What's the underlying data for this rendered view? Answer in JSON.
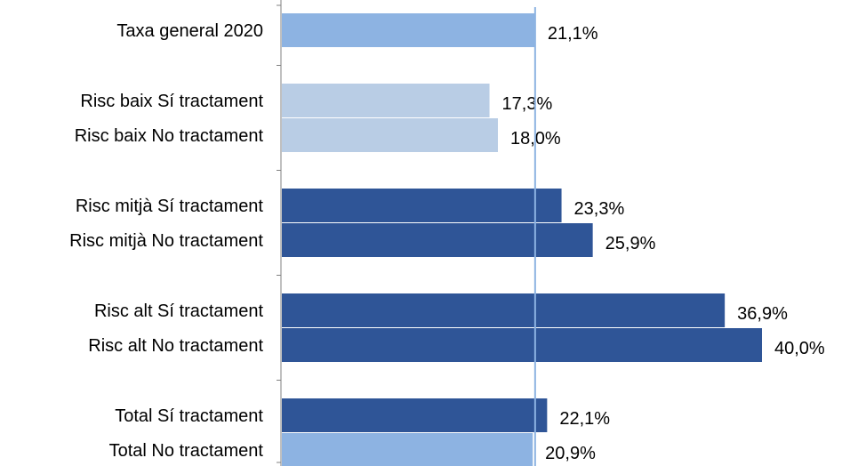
{
  "chart_data": {
    "type": "bar",
    "orientation": "horizontal",
    "title": "",
    "xlabel": "",
    "ylabel": "",
    "xlim": [
      0,
      40
    ],
    "grid": false,
    "legend": "none",
    "reference_line": {
      "value": 21.1,
      "color": "#8DB3E2"
    },
    "groups": [
      [
        "Taxa general 2020"
      ],
      [
        "Risc baix Sí tractament",
        "Risc baix No tractament"
      ],
      [
        "Risc mitjà Sí tractament",
        "Risc mitjà No tractament"
      ],
      [
        "Risc alt Sí tractament",
        "Risc alt No tractament"
      ],
      [
        "Total Sí tractament",
        "Total No tractament"
      ]
    ],
    "categories": [
      "Taxa general 2020",
      "Risc baix Sí tractament",
      "Risc baix No tractament",
      "Risc mitjà Sí tractament",
      "Risc mitjà No tractament",
      "Risc alt Sí tractament",
      "Risc alt No tractament",
      "Total Sí tractament",
      "Total No tractament"
    ],
    "values": [
      21.1,
      17.3,
      18.0,
      23.3,
      25.9,
      36.9,
      40.0,
      22.1,
      20.9
    ],
    "value_labels": [
      "21,1%",
      "17,3%",
      "18,0%",
      "23,3%",
      "25,9%",
      "36,9%",
      "40,0%",
      "22,1%",
      "20,9%"
    ],
    "bar_colors": [
      "#8DB3E2",
      "#B9CDE5",
      "#B9CDE5",
      "#2F5597",
      "#2F5597",
      "#2F5597",
      "#2F5597",
      "#2F5597",
      "#8DB3E2"
    ]
  }
}
